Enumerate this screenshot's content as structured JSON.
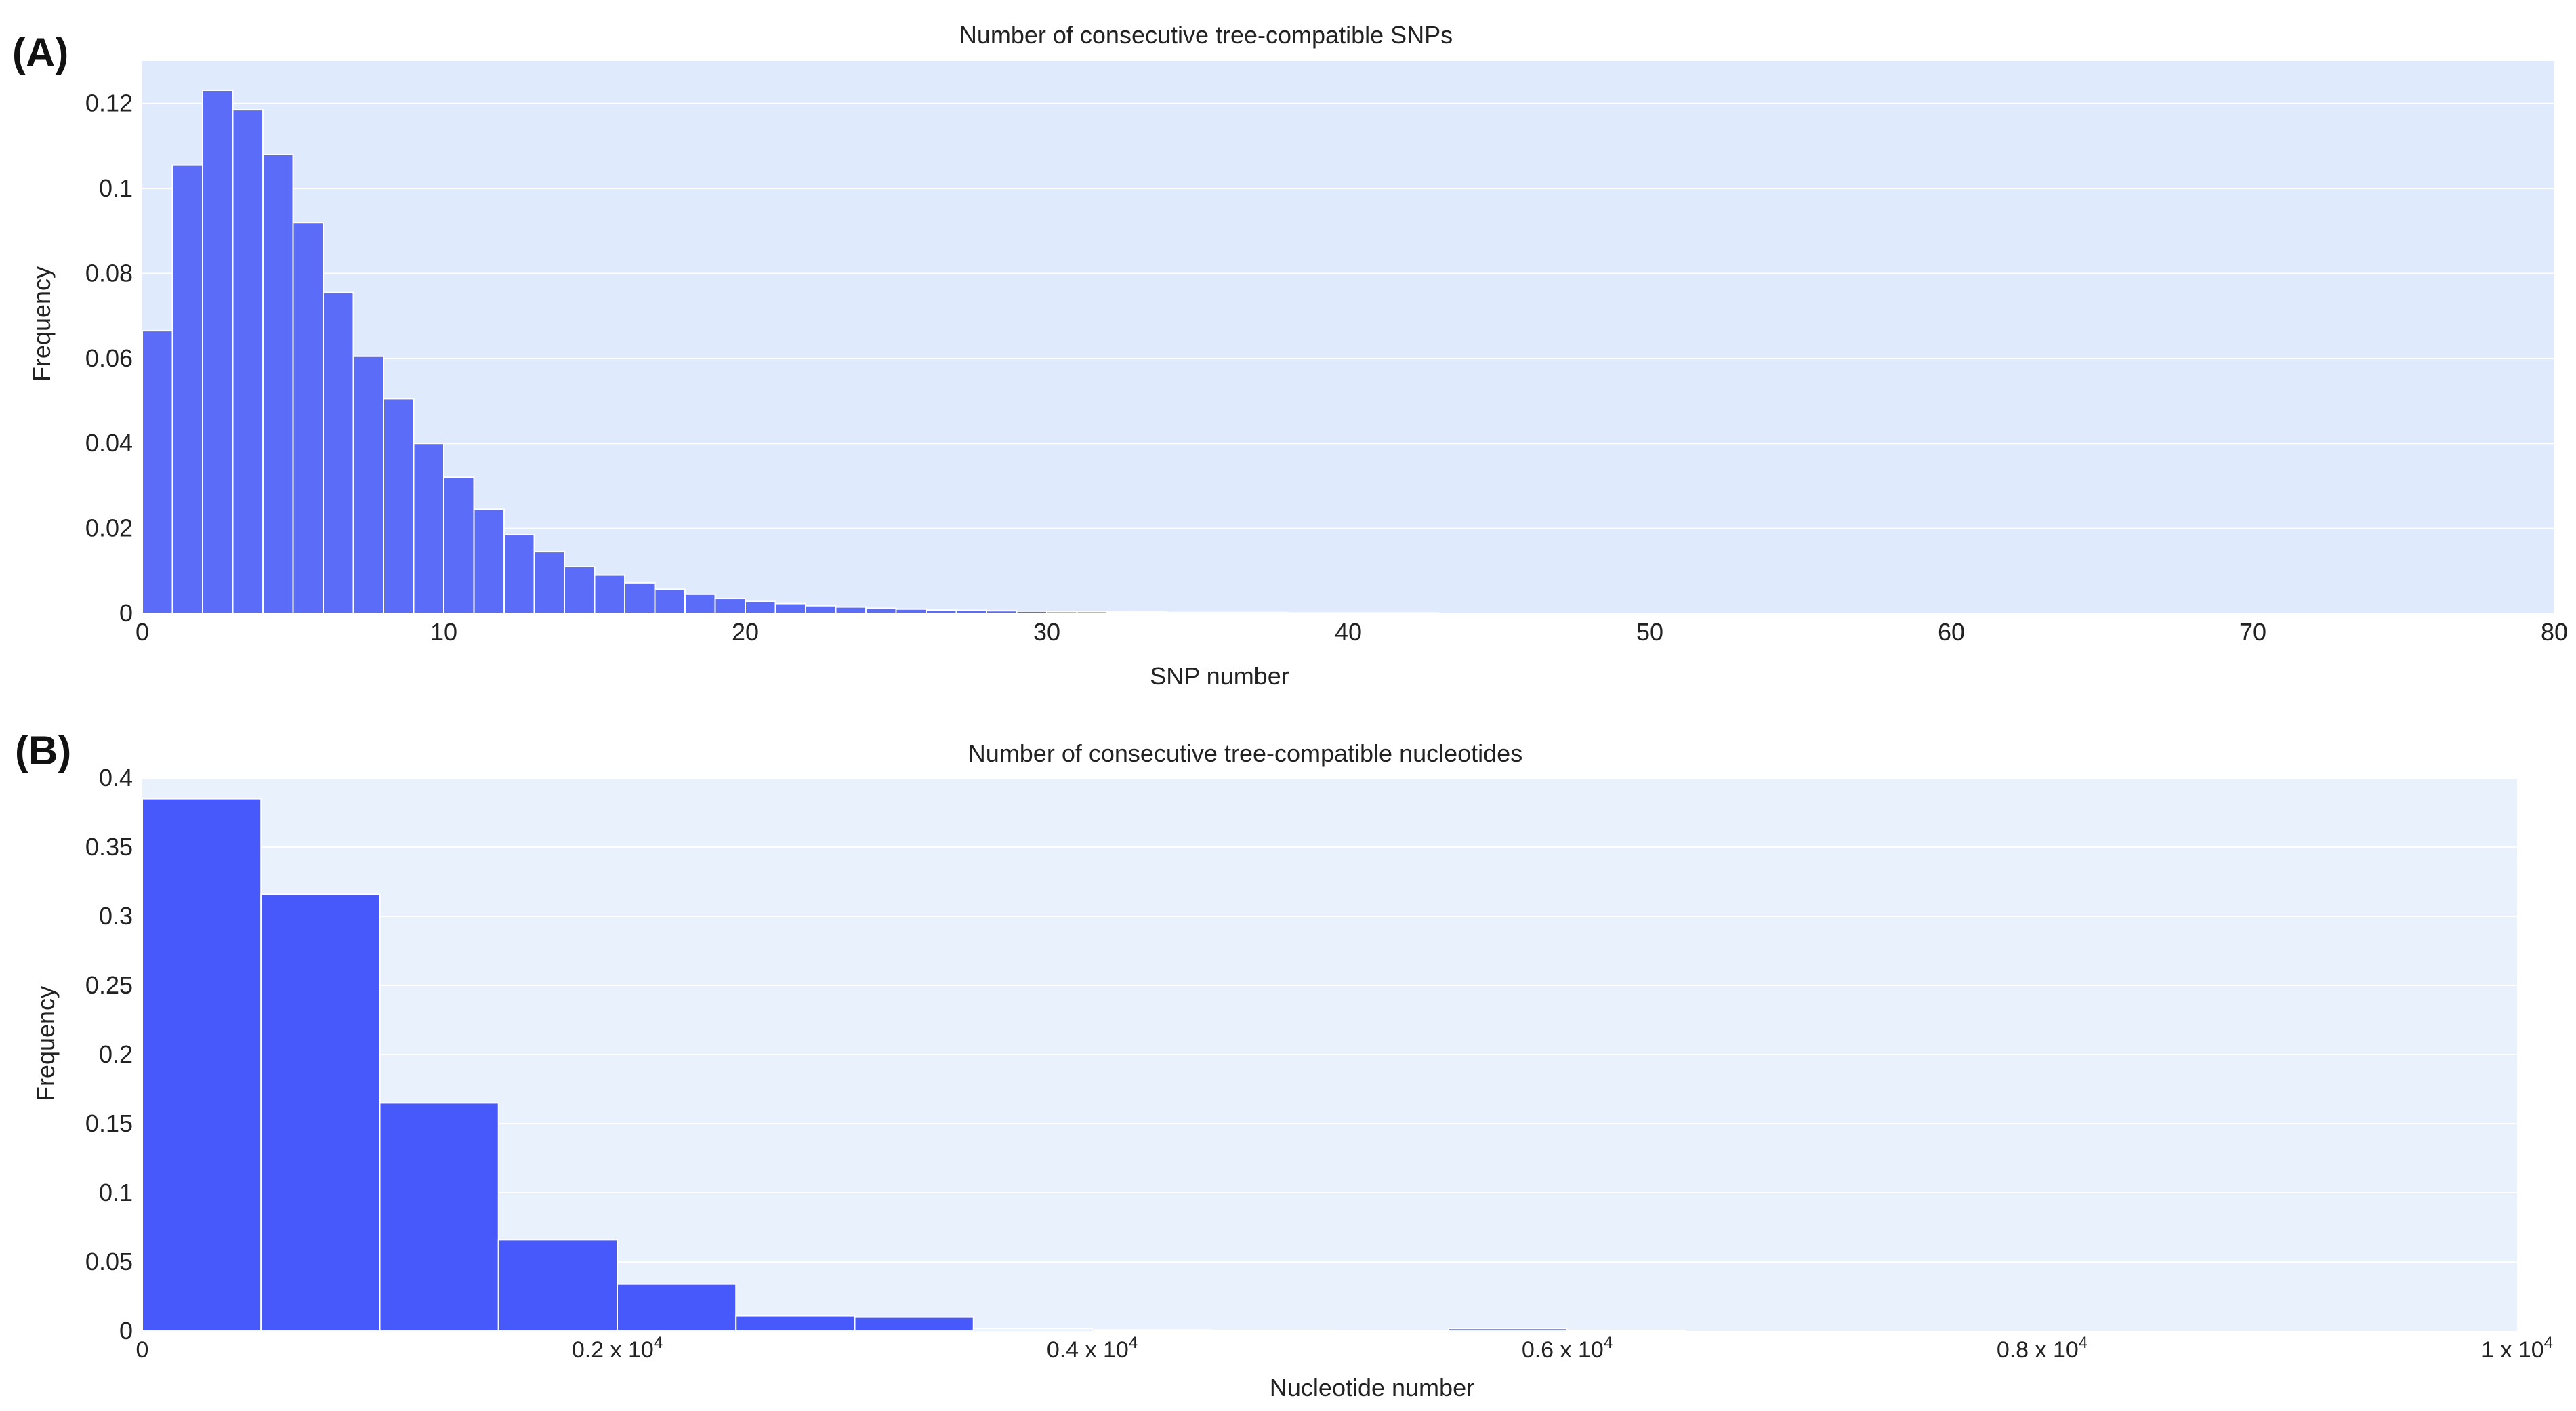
{
  "chart_data": [
    {
      "panel_label": "(A)",
      "type": "bar",
      "title": "Number of consecutive tree-compatible SNPs",
      "xlabel": "SNP number",
      "ylabel": "Frequency",
      "xlim": [
        0,
        80
      ],
      "ylim": [
        0,
        0.13
      ],
      "bin_start": 0,
      "bin_width": 1,
      "values": [
        0.0665,
        0.1055,
        0.123,
        0.1185,
        0.108,
        0.092,
        0.0755,
        0.0605,
        0.0505,
        0.04,
        0.032,
        0.0245,
        0.0185,
        0.0145,
        0.011,
        0.009,
        0.0072,
        0.0057,
        0.0045,
        0.0035,
        0.0028,
        0.0023,
        0.0018,
        0.0015,
        0.0012,
        0.001,
        0.0008,
        0.0007,
        0.0006,
        0.0005,
        0.0004,
        0.0004,
        0.0003,
        0.0003,
        0.0002,
        0.0002,
        0.0002,
        0.0002,
        0.0001,
        0.0001,
        0.0001,
        0.0001,
        0.0001
      ],
      "x_ticks": [
        0,
        10,
        20,
        30,
        40,
        50,
        60,
        70,
        80
      ],
      "x_tick_labels": [
        "0",
        "10",
        "20",
        "30",
        "40",
        "50",
        "60",
        "70",
        "80"
      ],
      "y_ticks": [
        0,
        0.02,
        0.04,
        0.06,
        0.08,
        0.1,
        0.12
      ],
      "y_tick_labels": [
        "0",
        "0.02",
        "0.04",
        "0.06",
        "0.08",
        "0.1",
        "0.12"
      ],
      "grid": true,
      "bar_color": "#5b6cf9",
      "plot_bg": "#dfeafd"
    },
    {
      "panel_label": "(B)",
      "type": "bar",
      "title": "Number of consecutive tree-compatible nucleotides",
      "xlabel": "Nucleotide number",
      "ylabel": "Frequency",
      "xlim": [
        0,
        10000
      ],
      "ylim": [
        0,
        0.4
      ],
      "bin_start": 0,
      "bin_width": 500,
      "values": [
        0.385,
        0.316,
        0.165,
        0.066,
        0.034,
        0.011,
        0.01,
        0.0015,
        0.0008,
        0.0004,
        0.0002,
        0.0018,
        0.0004
      ],
      "x_ticks": [
        0,
        2000,
        4000,
        6000,
        8000,
        10000
      ],
      "x_tick_labels": [
        {
          "base": "0",
          "sup": ""
        },
        {
          "base": "0.2 x 10",
          "sup": "4"
        },
        {
          "base": "0.4 x 10",
          "sup": "4"
        },
        {
          "base": "0.6 x 10",
          "sup": "4"
        },
        {
          "base": "0.8 x 10",
          "sup": "4"
        },
        {
          "base": "1 x 10",
          "sup": "4"
        }
      ],
      "y_ticks": [
        0,
        0.05,
        0.1,
        0.15,
        0.2,
        0.25,
        0.3,
        0.35,
        0.4
      ],
      "y_tick_labels": [
        "0",
        "0.05",
        "0.1",
        "0.15",
        "0.2",
        "0.25",
        "0.3",
        "0.35",
        "0.4"
      ],
      "grid": true,
      "bar_color": "#4859fb",
      "plot_bg": "#e9f1fd"
    }
  ]
}
